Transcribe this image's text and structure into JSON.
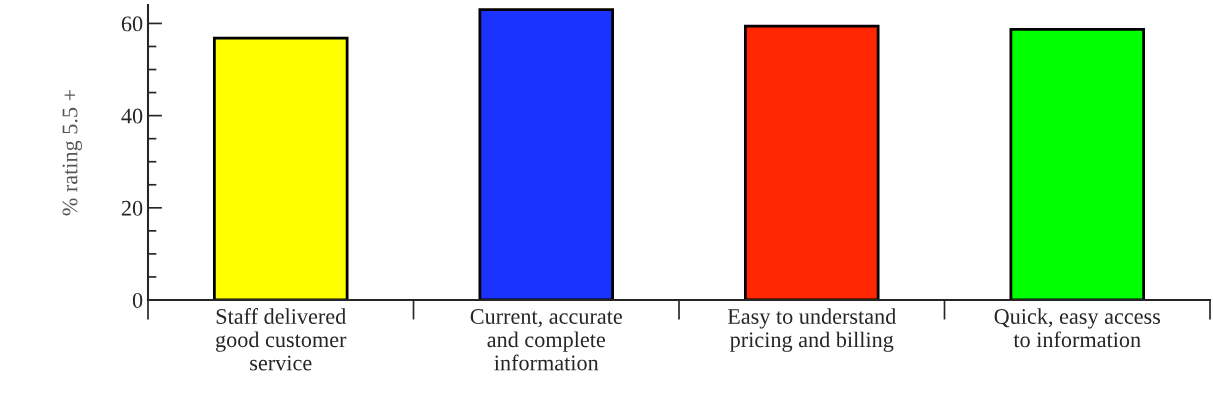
{
  "chart_data": {
    "type": "bar",
    "ylabel": "% rating 5.5 +",
    "categories": [
      "Staff delivered\ngood customer\nservice",
      "Current, accurate\nand complete\ninformation",
      "Easy to understand\npricing and billing",
      "Quick, easy access\nto information"
    ],
    "values": [
      56.8,
      63,
      59.4,
      58.7
    ],
    "colors": [
      "#ffff00",
      "#1a33ff",
      "#ff2600",
      "#00ff00"
    ],
    "ylim": [
      0,
      64
    ],
    "yticks": [
      0,
      20,
      40,
      60
    ],
    "grid": false,
    "legend": false
  }
}
